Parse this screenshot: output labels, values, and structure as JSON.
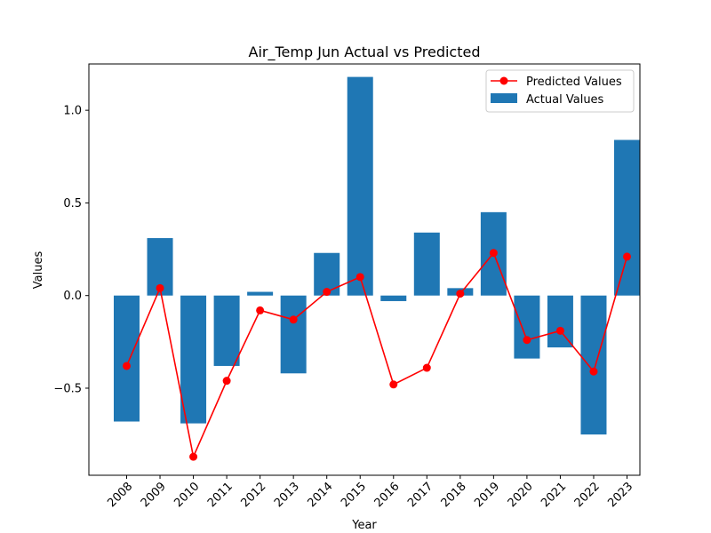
{
  "chart_data": {
    "type": "bar",
    "title": "Air_Temp Jun Actual vs Predicted",
    "xlabel": "Year",
    "ylabel": "Values",
    "categories": [
      "2008",
      "2009",
      "2010",
      "2011",
      "2012",
      "2013",
      "2014",
      "2015",
      "2016",
      "2017",
      "2018",
      "2019",
      "2020",
      "2021",
      "2022",
      "2023"
    ],
    "ylim": [
      -0.97,
      1.25
    ],
    "yticks": [
      -0.5,
      0.0,
      0.5,
      1.0
    ],
    "ytick_labels": [
      "−0.5",
      "0.0",
      "0.5",
      "1.0"
    ],
    "grid": false,
    "legend_position": "top-right",
    "series": [
      {
        "name": "Actual Values",
        "kind": "bar",
        "color": "#1f77b4",
        "values": [
          -0.68,
          0.31,
          -0.69,
          -0.38,
          0.02,
          -0.42,
          0.23,
          1.18,
          -0.03,
          0.34,
          0.04,
          0.45,
          -0.34,
          -0.28,
          -0.75,
          0.84
        ]
      },
      {
        "name": "Predicted Values",
        "kind": "line",
        "color": "#ff0000",
        "marker": "circle",
        "values": [
          -0.38,
          0.04,
          -0.87,
          -0.46,
          -0.08,
          -0.13,
          0.02,
          0.1,
          -0.48,
          -0.39,
          0.01,
          0.23,
          -0.24,
          -0.19,
          -0.41,
          0.21
        ]
      }
    ]
  }
}
